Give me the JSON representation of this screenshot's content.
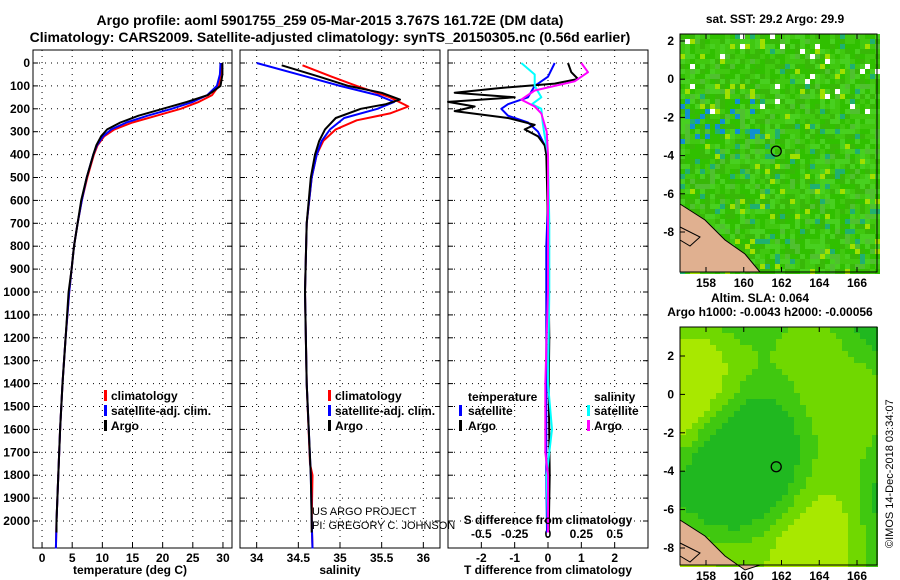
{
  "title": {
    "line1": "Argo profile: aoml 5901755_259 05-Mar-2015 3.767S 161.72E (DM data)",
    "line2": "Climatology: CARS2009. Satellite-adjusted climatology: synTS_20150305.nc (0.56d earlier)"
  },
  "colors": {
    "climatology": "#ff0000",
    "satellite": "#0000ff",
    "argo": "#000000",
    "sal_satellite": "#00ffff",
    "sal_argo": "#ff00ff"
  },
  "chart_data": [
    {
      "type": "line",
      "name": "temperature-profile",
      "xlabel": "temperature (deg C)",
      "xlim": [
        -1.5,
        31.5
      ],
      "xticks": [
        0,
        5,
        10,
        15,
        20,
        25,
        30
      ],
      "ylim": [
        2120,
        0
      ],
      "yticks": [
        0,
        100,
        200,
        300,
        400,
        500,
        600,
        700,
        800,
        900,
        1000,
        1100,
        1200,
        1300,
        1400,
        1500,
        1600,
        1700,
        1800,
        1900,
        2000
      ],
      "grid": true,
      "legend": [
        "climatology",
        "satellite-adj. clim.",
        "Argo"
      ],
      "series": [
        {
          "name": "climatology",
          "color": "#ff0000",
          "points": [
            [
              0,
              29.6
            ],
            [
              50,
              29.6
            ],
            [
              100,
              29.3
            ],
            [
              140,
              28.2
            ],
            [
              170,
              26
            ],
            [
              200,
              23
            ],
            [
              230,
              19
            ],
            [
              260,
              15
            ],
            [
              290,
              12
            ],
            [
              320,
              10.3
            ],
            [
              360,
              9.2
            ],
            [
              400,
              8.6
            ],
            [
              500,
              7.5
            ],
            [
              600,
              6.6
            ],
            [
              700,
              5.9
            ],
            [
              800,
              5.3
            ],
            [
              900,
              4.9
            ],
            [
              1000,
              4.5
            ],
            [
              1200,
              3.9
            ],
            [
              1400,
              3.4
            ],
            [
              1600,
              3.0
            ],
            [
              1800,
              2.7
            ],
            [
              2000,
              2.4
            ],
            [
              2120,
              2.3
            ]
          ]
        },
        {
          "name": "satellite-adj. clim.",
          "color": "#0000ff",
          "points": [
            [
              0,
              29.6
            ],
            [
              50,
              29.5
            ],
            [
              100,
              29.0
            ],
            [
              140,
              27.4
            ],
            [
              170,
              25
            ],
            [
              200,
              21.5
            ],
            [
              230,
              17.5
            ],
            [
              260,
              14
            ],
            [
              290,
              11.5
            ],
            [
              320,
              10.1
            ],
            [
              360,
              9.1
            ],
            [
              400,
              8.5
            ],
            [
              500,
              7.4
            ],
            [
              600,
              6.6
            ],
            [
              700,
              5.9
            ],
            [
              800,
              5.3
            ],
            [
              900,
              4.9
            ],
            [
              1000,
              4.5
            ],
            [
              1200,
              3.9
            ],
            [
              1400,
              3.4
            ],
            [
              1600,
              3.0
            ],
            [
              1800,
              2.7
            ],
            [
              2000,
              2.4
            ],
            [
              2120,
              2.3
            ]
          ]
        },
        {
          "name": "Argo",
          "color": "#000000",
          "points": [
            [
              0,
              29.9
            ],
            [
              50,
              29.9
            ],
            [
              100,
              29.6
            ],
            [
              140,
              27.5
            ],
            [
              170,
              24
            ],
            [
              200,
              20
            ],
            [
              230,
              16
            ],
            [
              260,
              13
            ],
            [
              290,
              10.8
            ],
            [
              320,
              9.8
            ],
            [
              360,
              9.0
            ],
            [
              400,
              8.5
            ],
            [
              500,
              7.4
            ],
            [
              600,
              6.5
            ],
            [
              700,
              5.9
            ],
            [
              800,
              5.3
            ],
            [
              900,
              4.9
            ],
            [
              1000,
              4.4
            ],
            [
              1200,
              3.9
            ],
            [
              1400,
              3.4
            ],
            [
              1600,
              3.0
            ],
            [
              1800,
              2.7
            ],
            [
              2000,
              2.4
            ],
            [
              2050,
              2.4
            ]
          ]
        }
      ]
    },
    {
      "type": "line",
      "name": "salinity-profile",
      "xlabel": "salinity",
      "xlim": [
        33.8,
        36.2
      ],
      "xticks": [
        34,
        34.5,
        35,
        35.5,
        36
      ],
      "ylim": [
        2120,
        0
      ],
      "grid": true,
      "legend": [
        "climatology",
        "satellite-adj. clim.",
        "Argo"
      ],
      "series": [
        {
          "name": "climatology",
          "color": "#ff0000",
          "points": [
            [
              10,
              34.55
            ],
            [
              60,
              34.9
            ],
            [
              100,
              35.2
            ],
            [
              150,
              35.6
            ],
            [
              190,
              35.82
            ],
            [
              220,
              35.6
            ],
            [
              250,
              35.2
            ],
            [
              290,
              34.95
            ],
            [
              340,
              34.8
            ],
            [
              400,
              34.72
            ],
            [
              500,
              34.66
            ],
            [
              700,
              34.6
            ],
            [
              1000,
              34.58
            ],
            [
              1400,
              34.6
            ],
            [
              1750,
              34.64
            ],
            [
              1800,
              34.67
            ],
            [
              2000,
              34.66
            ],
            [
              2120,
              34.67
            ]
          ]
        },
        {
          "name": "satellite-adj. clim.",
          "color": "#0000ff",
          "points": [
            [
              0,
              34.0
            ],
            [
              60,
              34.6
            ],
            [
              100,
              35.0
            ],
            [
              140,
              35.45
            ],
            [
              170,
              35.65
            ],
            [
              200,
              35.45
            ],
            [
              240,
              35.05
            ],
            [
              290,
              34.88
            ],
            [
              340,
              34.78
            ],
            [
              400,
              34.72
            ],
            [
              500,
              34.66
            ],
            [
              700,
              34.6
            ],
            [
              1000,
              34.58
            ],
            [
              1400,
              34.6
            ],
            [
              1800,
              34.65
            ],
            [
              2000,
              34.66
            ],
            [
              2120,
              34.67
            ]
          ]
        },
        {
          "name": "Argo",
          "color": "#000000",
          "points": [
            [
              10,
              34.3
            ],
            [
              60,
              34.75
            ],
            [
              100,
              35.1
            ],
            [
              130,
              35.5
            ],
            [
              160,
              35.72
            ],
            [
              180,
              35.55
            ],
            [
              200,
              35.25
            ],
            [
              240,
              34.95
            ],
            [
              290,
              34.82
            ],
            [
              340,
              34.75
            ],
            [
              400,
              34.7
            ],
            [
              500,
              34.65
            ],
            [
              700,
              34.6
            ],
            [
              1000,
              34.58
            ],
            [
              1400,
              34.6
            ],
            [
              1800,
              34.65
            ],
            [
              2000,
              34.66
            ],
            [
              2050,
              34.66
            ]
          ]
        }
      ]
    },
    {
      "type": "line",
      "name": "difference-profile",
      "xlabel": "T difference from climatology",
      "x2label": "S difference from climatology",
      "xlim": [
        -3,
        3
      ],
      "xticks": [
        -2,
        -1,
        0,
        1,
        2
      ],
      "x2ticks": [
        "-0.5",
        "-0.25",
        "0",
        "0.25",
        "0.5"
      ],
      "ylim": [
        2120,
        0
      ],
      "grid": true,
      "legend": {
        "temperature": "temperature",
        "salinity": "salinity",
        "satellite": "satellite",
        "argo": "Argo"
      },
      "series": [
        {
          "name": "temperature satellite",
          "color": "#0000ff",
          "scale": "T",
          "points": [
            [
              0,
              0.2
            ],
            [
              60,
              0.0
            ],
            [
              100,
              -0.4
            ],
            [
              150,
              -0.6
            ],
            [
              180,
              -1.2
            ],
            [
              200,
              -1.4
            ],
            [
              230,
              -1.2
            ],
            [
              260,
              -0.6
            ],
            [
              300,
              -0.3
            ],
            [
              360,
              -0.1
            ],
            [
              400,
              0
            ],
            [
              600,
              0
            ],
            [
              800,
              -0.05
            ],
            [
              1000,
              -0.05
            ],
            [
              1400,
              -0.05
            ],
            [
              1800,
              -0.05
            ],
            [
              2050,
              -0.03
            ]
          ]
        },
        {
          "name": "temperature Argo",
          "color": "#000000",
          "scale": "T",
          "points": [
            [
              0,
              0.6
            ],
            [
              40,
              0.7
            ],
            [
              70,
              0.9
            ],
            [
              90,
              0.2
            ],
            [
              110,
              -1.5
            ],
            [
              130,
              -2.8
            ],
            [
              150,
              -1.0
            ],
            [
              170,
              -3.0
            ],
            [
              190,
              -2.2
            ],
            [
              210,
              -2.8
            ],
            [
              240,
              -1.2
            ],
            [
              270,
              -0.4
            ],
            [
              290,
              -0.7
            ],
            [
              320,
              -0.3
            ],
            [
              360,
              -0.1
            ],
            [
              400,
              -0.05
            ],
            [
              700,
              0
            ],
            [
              1000,
              0.02
            ],
            [
              1200,
              0.04
            ],
            [
              1400,
              0.02
            ],
            [
              1800,
              0.05
            ],
            [
              2050,
              0.02
            ]
          ]
        },
        {
          "name": "salinity satellite",
          "color": "#00ffff",
          "scale": "S",
          "points": [
            [
              0,
              -0.2
            ],
            [
              50,
              -0.1
            ],
            [
              100,
              -0.1
            ],
            [
              150,
              -0.05
            ],
            [
              180,
              -0.12
            ],
            [
              200,
              -0.05
            ],
            [
              260,
              -0.04
            ],
            [
              300,
              -0.03
            ],
            [
              400,
              0
            ],
            [
              700,
              0.01
            ],
            [
              1000,
              0.01
            ],
            [
              1400,
              0.0
            ],
            [
              1600,
              0.03
            ],
            [
              1700,
              0.01
            ],
            [
              1800,
              -0.01
            ],
            [
              2050,
              0.0
            ]
          ]
        },
        {
          "name": "salinity Argo",
          "color": "#ff00ff",
          "scale": "S",
          "points": [
            [
              0,
              0.25
            ],
            [
              40,
              0.3
            ],
            [
              80,
              0.2
            ],
            [
              120,
              -0.1
            ],
            [
              160,
              -0.2
            ],
            [
              190,
              -0.1
            ],
            [
              220,
              -0.05
            ],
            [
              260,
              -0.03
            ],
            [
              300,
              -0.01
            ],
            [
              400,
              0
            ],
            [
              700,
              0.0
            ],
            [
              1000,
              0.0
            ],
            [
              1400,
              -0.02
            ],
            [
              1700,
              -0.02
            ],
            [
              1800,
              0.0
            ],
            [
              2050,
              0.0
            ]
          ]
        }
      ]
    }
  ],
  "credits": {
    "project": "US ARGO PROJECT",
    "pi": "PI: GREGORY C. JOHNSON"
  },
  "maps": {
    "sst": {
      "title": "sat. SST: 29.2 Argo: 29.9"
    },
    "sla": {
      "title1": "Altim. SLA: 0.064",
      "title2": "Argo h1000: -0.0043 h2000: -0.00056"
    },
    "lon_ticks": [
      "158",
      "160",
      "162",
      "164",
      "166"
    ],
    "lat_ticks": [
      "2",
      "0",
      "-2",
      "-4",
      "-6",
      "-8"
    ],
    "float_position": {
      "lon": 161.72,
      "lat": -3.767
    }
  },
  "footer": "©IMOS 14-Dec-2018 03:34:07"
}
